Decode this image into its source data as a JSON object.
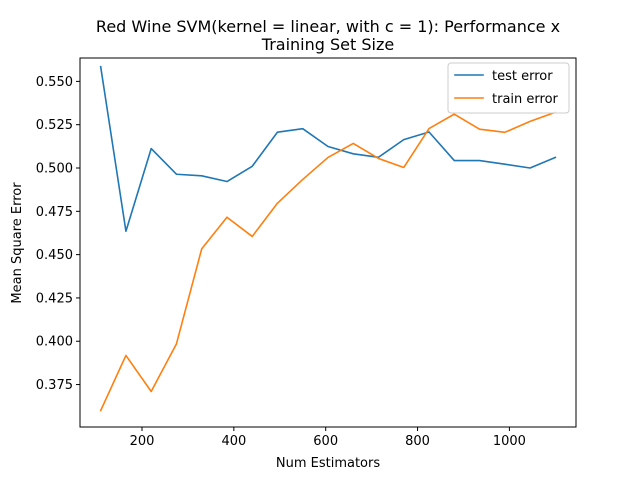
{
  "chart_data": {
    "type": "line",
    "title_lines": [
      "Red Wine SVM(kernel = linear, with c = 1): Performance x",
      "Training Set Size"
    ],
    "xlabel": "Num Estimators",
    "ylabel": "Mean Square Error",
    "xlim": [
      65,
      1145
    ],
    "ylim": [
      0.3505,
      0.5635
    ],
    "xticks": [
      200,
      400,
      600,
      800,
      1000
    ],
    "yticks": [
      0.375,
      0.4,
      0.425,
      0.45,
      0.475,
      0.5,
      0.525,
      0.55
    ],
    "xtick_labels": [
      "200",
      "400",
      "600",
      "800",
      "1000"
    ],
    "ytick_labels": [
      "0.375",
      "0.400",
      "0.425",
      "0.450",
      "0.475",
      "0.500",
      "0.525",
      "0.550"
    ],
    "grid": false,
    "legend_position": "top-right",
    "x": [
      110,
      165,
      220,
      275,
      330,
      385,
      440,
      495,
      550,
      605,
      660,
      715,
      770,
      825,
      880,
      935,
      990,
      1045,
      1100
    ],
    "series": [
      {
        "name": "test error",
        "color": "#1f77b4",
        "values": [
          0.5585,
          0.4635,
          0.5112,
          0.4964,
          0.4955,
          0.4922,
          0.501,
          0.5207,
          0.5227,
          0.5124,
          0.5082,
          0.5062,
          0.5164,
          0.5208,
          0.5043,
          0.5043,
          0.5022,
          0.5,
          0.5061
        ]
      },
      {
        "name": "train error",
        "color": "#ff7f0e",
        "values": [
          0.36,
          0.3918,
          0.371,
          0.3985,
          0.4533,
          0.4716,
          0.4605,
          0.4797,
          0.4934,
          0.5061,
          0.5142,
          0.5055,
          0.5003,
          0.5228,
          0.5311,
          0.5224,
          0.5206,
          0.5269,
          0.5322
        ]
      }
    ]
  }
}
